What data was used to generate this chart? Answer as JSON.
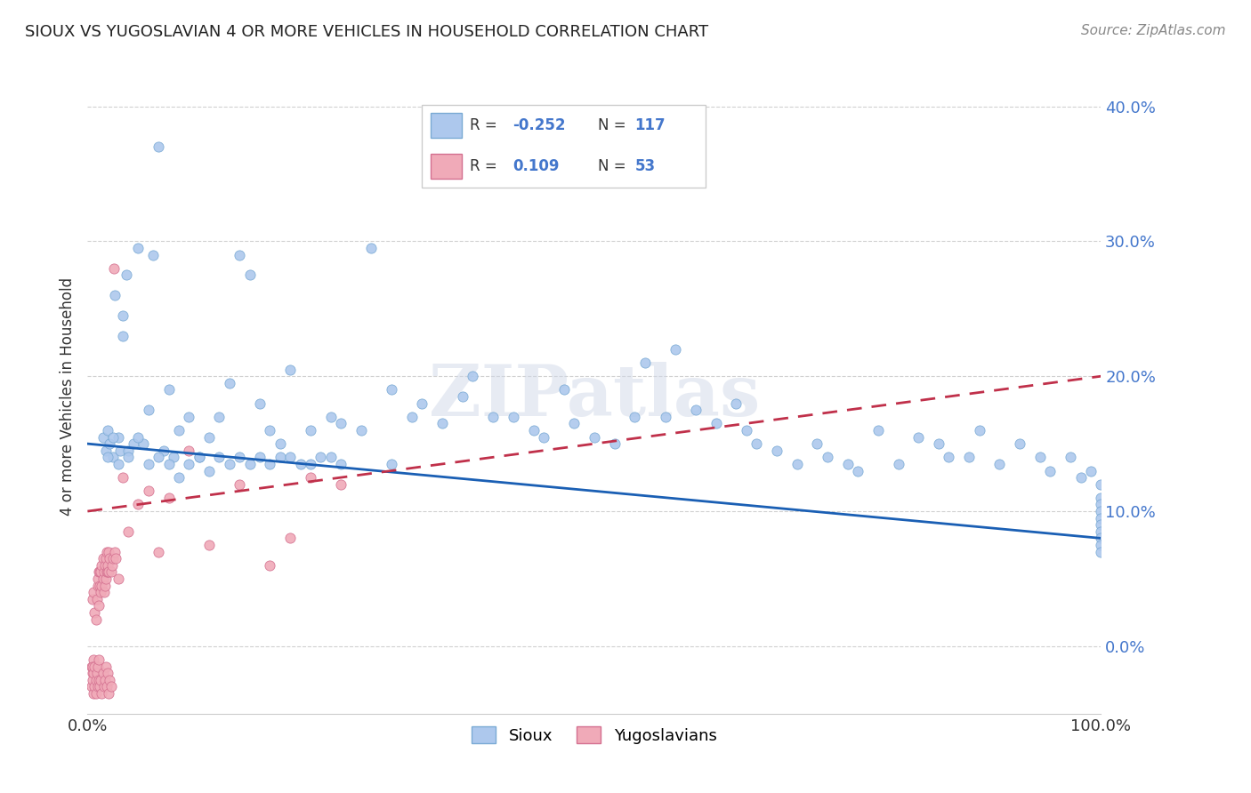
{
  "title": "SIOUX VS YUGOSLAVIAN 4 OR MORE VEHICLES IN HOUSEHOLD CORRELATION CHART",
  "source": "Source: ZipAtlas.com",
  "ylabel": "4 or more Vehicles in Household",
  "xlim": [
    0,
    100
  ],
  "ylim": [
    -5,
    42
  ],
  "ytick_values": [
    0,
    10,
    20,
    30,
    40
  ],
  "ytick_labels": [
    "0.0%",
    "10.0%",
    "20.0%",
    "30.0%",
    "40.0%"
  ],
  "xtick_values": [
    0,
    100
  ],
  "xtick_labels": [
    "0.0%",
    "100.0%"
  ],
  "sioux_color": "#adc8ed",
  "sioux_edge": "#7aaad4",
  "yugoslavian_color": "#f0aab8",
  "yugoslavian_edge": "#d47090",
  "line_sioux_color": "#1a5fb4",
  "line_yugo_color": "#c0304a",
  "watermark": "ZIPatlas",
  "legend_label_sioux": "Sioux",
  "legend_label_yugo": "Yugoslavians",
  "sioux_x": [
    1.5,
    1.8,
    2.0,
    2.2,
    2.5,
    2.7,
    3.0,
    3.2,
    3.5,
    3.8,
    4.0,
    4.5,
    5.0,
    5.5,
    6.0,
    6.5,
    7.0,
    7.5,
    8.0,
    8.5,
    9.0,
    10.0,
    11.0,
    12.0,
    13.0,
    14.0,
    15.0,
    16.0,
    17.0,
    18.0,
    19.0,
    20.0,
    22.0,
    24.0,
    25.0,
    27.0,
    28.0,
    30.0,
    32.0,
    33.0,
    35.0,
    37.0,
    38.0,
    40.0,
    42.0,
    44.0,
    45.0,
    47.0,
    48.0,
    50.0,
    52.0,
    54.0,
    55.0,
    57.0,
    58.0,
    60.0,
    62.0,
    64.0,
    65.0,
    66.0,
    68.0,
    70.0,
    72.0,
    73.0,
    75.0,
    76.0,
    78.0,
    80.0,
    82.0,
    84.0,
    85.0,
    87.0,
    88.0,
    90.0,
    92.0,
    94.0,
    95.0,
    97.0,
    98.0,
    99.0,
    100.0,
    100.0,
    100.0,
    100.0,
    100.0,
    100.0,
    100.0,
    100.0,
    100.0,
    100.0,
    2.0,
    2.5,
    3.0,
    3.5,
    4.0,
    5.0,
    6.0,
    7.0,
    8.0,
    9.0,
    10.0,
    11.0,
    12.0,
    13.0,
    14.0,
    15.0,
    16.0,
    17.0,
    18.0,
    19.0,
    20.0,
    21.0,
    22.0,
    23.0,
    24.0,
    25.0,
    30.0
  ],
  "sioux_y": [
    15.5,
    14.5,
    16.0,
    15.0,
    14.0,
    26.0,
    15.5,
    14.5,
    24.5,
    27.5,
    14.5,
    15.0,
    29.5,
    15.0,
    17.5,
    29.0,
    37.0,
    14.5,
    19.0,
    14.0,
    16.0,
    17.0,
    14.0,
    15.5,
    17.0,
    19.5,
    29.0,
    27.5,
    18.0,
    16.0,
    15.0,
    20.5,
    16.0,
    17.0,
    16.5,
    16.0,
    29.5,
    19.0,
    17.0,
    18.0,
    16.5,
    18.5,
    20.0,
    17.0,
    17.0,
    16.0,
    15.5,
    19.0,
    16.5,
    15.5,
    15.0,
    17.0,
    21.0,
    17.0,
    22.0,
    17.5,
    16.5,
    18.0,
    16.0,
    15.0,
    14.5,
    13.5,
    15.0,
    14.0,
    13.5,
    13.0,
    16.0,
    13.5,
    15.5,
    15.0,
    14.0,
    14.0,
    16.0,
    13.5,
    15.0,
    14.0,
    13.0,
    14.0,
    12.5,
    13.0,
    12.0,
    11.0,
    10.5,
    10.0,
    9.5,
    9.0,
    8.5,
    8.0,
    7.5,
    7.0,
    14.0,
    15.5,
    13.5,
    23.0,
    14.0,
    15.5,
    13.5,
    14.0,
    13.5,
    12.5,
    13.5,
    14.0,
    13.0,
    14.0,
    13.5,
    14.0,
    13.5,
    14.0,
    13.5,
    14.0,
    14.0,
    13.5,
    13.5,
    14.0,
    14.0,
    13.5,
    13.5
  ],
  "yugo_x": [
    0.5,
    0.6,
    0.7,
    0.8,
    0.9,
    1.0,
    1.0,
    1.1,
    1.1,
    1.2,
    1.2,
    1.3,
    1.3,
    1.4,
    1.4,
    1.5,
    1.5,
    1.6,
    1.6,
    1.7,
    1.7,
    1.8,
    1.8,
    1.9,
    1.9,
    2.0,
    2.0,
    2.1,
    2.1,
    2.2,
    2.3,
    2.4,
    2.5,
    2.6,
    2.7,
    2.8,
    3.0,
    3.5,
    4.0,
    5.0,
    6.0,
    7.0,
    8.0,
    10.0,
    12.0,
    15.0,
    18.0,
    20.0,
    22.0,
    25.0,
    0.4,
    0.5,
    0.6
  ],
  "yugo_y": [
    3.5,
    4.0,
    2.5,
    2.0,
    3.5,
    4.5,
    5.0,
    3.0,
    5.5,
    5.5,
    4.5,
    5.5,
    4.0,
    4.5,
    6.0,
    5.0,
    6.5,
    4.0,
    5.5,
    4.5,
    6.0,
    6.5,
    5.0,
    7.0,
    5.5,
    5.5,
    6.0,
    5.5,
    7.0,
    6.5,
    5.5,
    6.0,
    6.5,
    28.0,
    7.0,
    6.5,
    5.0,
    12.5,
    8.5,
    10.5,
    11.5,
    7.0,
    11.0,
    14.5,
    7.5,
    12.0,
    6.0,
    8.0,
    12.5,
    12.0,
    -1.5,
    -2.0,
    -1.0
  ],
  "yugo_extra_x": [
    0.4,
    0.5,
    0.5,
    0.6,
    0.6,
    0.7,
    0.7,
    0.8,
    0.8,
    0.9,
    1.0,
    1.0,
    1.1,
    1.1,
    1.2,
    1.3,
    1.4,
    1.5,
    1.6,
    1.7,
    1.8,
    1.9,
    2.0,
    2.1,
    2.2,
    2.3
  ],
  "yugo_extra_y": [
    -3.0,
    -2.5,
    -1.5,
    -3.5,
    -2.0,
    -3.0,
    -1.5,
    -2.5,
    -3.5,
    -2.0,
    -3.0,
    -1.5,
    -2.5,
    -1.0,
    -3.0,
    -2.5,
    -3.5,
    -2.0,
    -3.0,
    -2.5,
    -1.5,
    -3.0,
    -2.0,
    -3.5,
    -2.5,
    -3.0
  ]
}
